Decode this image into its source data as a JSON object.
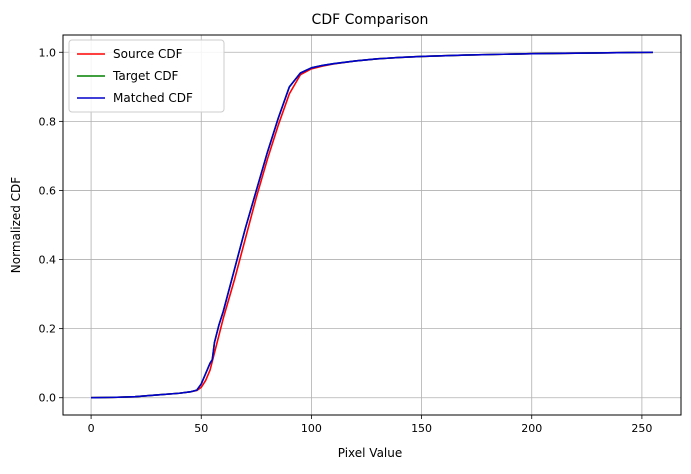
{
  "chart_data": {
    "type": "line",
    "title": "CDF Comparison",
    "xlabel": "Pixel Value",
    "ylabel": "Normalized CDF",
    "xlim": [
      -12.75,
      267.75
    ],
    "ylim": [
      -0.05,
      1.05
    ],
    "xticks": [
      0,
      50,
      100,
      150,
      200,
      250
    ],
    "yticks": [
      0.0,
      0.2,
      0.4,
      0.6,
      0.8,
      1.0
    ],
    "xtick_labels": [
      "0",
      "50",
      "100",
      "150",
      "200",
      "250"
    ],
    "ytick_labels": [
      "0.0",
      "0.2",
      "0.4",
      "0.6",
      "0.8",
      "1.0"
    ],
    "grid": true,
    "legend_position": "top-left",
    "series": [
      {
        "name": "Source CDF",
        "color": "#ff0000",
        "x": [
          0,
          10,
          20,
          30,
          40,
          45,
          48,
          50,
          52,
          54,
          56,
          58,
          60,
          65,
          70,
          75,
          80,
          85,
          90,
          95,
          100,
          105,
          110,
          120,
          130,
          140,
          150,
          170,
          200,
          230,
          255
        ],
        "y": [
          0.0,
          0.001,
          0.003,
          0.008,
          0.013,
          0.017,
          0.021,
          0.03,
          0.05,
          0.08,
          0.13,
          0.18,
          0.23,
          0.34,
          0.46,
          0.58,
          0.69,
          0.79,
          0.88,
          0.935,
          0.952,
          0.96,
          0.966,
          0.975,
          0.981,
          0.985,
          0.988,
          0.992,
          0.996,
          0.998,
          1.0
        ]
      },
      {
        "name": "Target CDF",
        "color": "#008000",
        "x": [
          0,
          10,
          20,
          30,
          40,
          45,
          48,
          50,
          52,
          54,
          55,
          56,
          58,
          60,
          65,
          70,
          75,
          80,
          85,
          90,
          95,
          100,
          105,
          110,
          120,
          130,
          140,
          150,
          170,
          200,
          230,
          255
        ],
        "y": [
          0.0,
          0.001,
          0.003,
          0.008,
          0.013,
          0.017,
          0.022,
          0.04,
          0.07,
          0.1,
          0.11,
          0.16,
          0.21,
          0.25,
          0.37,
          0.49,
          0.6,
          0.71,
          0.81,
          0.9,
          0.94,
          0.955,
          0.962,
          0.967,
          0.975,
          0.981,
          0.985,
          0.988,
          0.992,
          0.996,
          0.998,
          1.0
        ]
      },
      {
        "name": "Matched CDF",
        "color": "#0000cc",
        "x": [
          0,
          10,
          20,
          30,
          40,
          45,
          48,
          50,
          52,
          54,
          55,
          56,
          58,
          60,
          65,
          70,
          75,
          80,
          85,
          90,
          95,
          100,
          105,
          110,
          120,
          130,
          140,
          150,
          170,
          200,
          230,
          255
        ],
        "y": [
          0.0,
          0.001,
          0.003,
          0.008,
          0.013,
          0.017,
          0.022,
          0.04,
          0.07,
          0.1,
          0.11,
          0.16,
          0.21,
          0.25,
          0.37,
          0.49,
          0.6,
          0.71,
          0.81,
          0.9,
          0.94,
          0.955,
          0.962,
          0.967,
          0.975,
          0.981,
          0.985,
          0.988,
          0.992,
          0.996,
          0.998,
          1.0
        ]
      }
    ]
  }
}
